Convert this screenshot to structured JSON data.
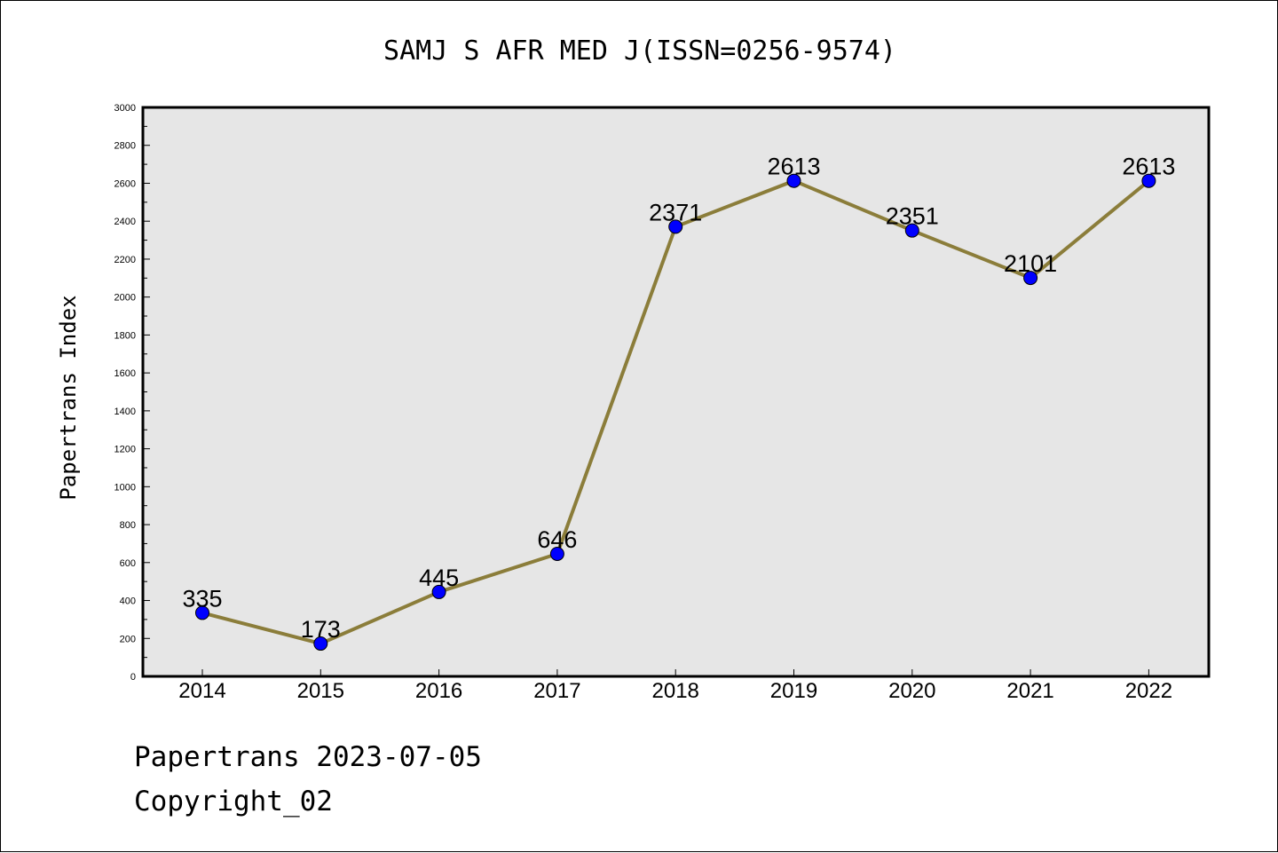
{
  "chart_data": {
    "type": "line",
    "title": "SAMJ S AFR MED J(ISSN=0256-9574)",
    "xlabel": "",
    "ylabel": "Papertrans Index",
    "categories": [
      "2014",
      "2015",
      "2016",
      "2017",
      "2018",
      "2019",
      "2020",
      "2021",
      "2022"
    ],
    "series": [
      {
        "values": [
          335,
          173,
          445,
          646,
          2371,
          2613,
          2351,
          2101,
          2613
        ]
      }
    ],
    "data_labels": [
      "335",
      "173",
      "445",
      "646",
      "2371",
      "2613",
      "2351",
      "2101",
      "2613"
    ],
    "ylim": [
      0,
      3000
    ],
    "yticks": [
      0,
      200,
      400,
      600,
      800,
      1000,
      1200,
      1400,
      1600,
      1800,
      2000,
      2200,
      2400,
      2600,
      2800,
      3000
    ],
    "grid": false,
    "legend": "none",
    "colors": {
      "line": "#8b7d3a",
      "marker_fill": "#0000ff",
      "marker_stroke": "#000000",
      "plot_background": "#e6e6e6"
    }
  },
  "footer": {
    "line1": "Papertrans 2023-07-05",
    "line2": "Copyright_02"
  }
}
